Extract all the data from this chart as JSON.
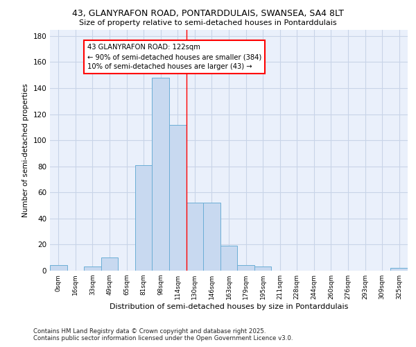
{
  "title_line1": "43, GLANYRAFON ROAD, PONTARDDULAIS, SWANSEA, SA4 8LT",
  "title_line2": "Size of property relative to semi-detached houses in Pontarddulais",
  "xlabel": "Distribution of semi-detached houses by size in Pontarddulais",
  "ylabel": "Number of semi-detached properties",
  "categories": [
    "0sqm",
    "16sqm",
    "33sqm",
    "49sqm",
    "65sqm",
    "81sqm",
    "98sqm",
    "114sqm",
    "130sqm",
    "146sqm",
    "163sqm",
    "179sqm",
    "195sqm",
    "211sqm",
    "228sqm",
    "244sqm",
    "260sqm",
    "276sqm",
    "293sqm",
    "309sqm",
    "325sqm"
  ],
  "values": [
    4,
    0,
    3,
    10,
    0,
    81,
    148,
    112,
    52,
    52,
    19,
    4,
    3,
    0,
    0,
    0,
    0,
    0,
    0,
    0,
    2
  ],
  "bar_color": "#c8d9f0",
  "bar_edge_color": "#6baed6",
  "grid_color": "#c8d4e8",
  "background_color": "#eaf0fb",
  "vline_x_index": 8,
  "vline_color": "red",
  "annotation_title": "43 GLANYRAFON ROAD: 122sqm",
  "annotation_line1": "← 90% of semi-detached houses are smaller (384)",
  "annotation_line2": "10% of semi-detached houses are larger (43) →",
  "annotation_box_color": "white",
  "annotation_edge_color": "red",
  "ylim": [
    0,
    185
  ],
  "yticks": [
    0,
    20,
    40,
    60,
    80,
    100,
    120,
    140,
    160,
    180
  ],
  "footer_line1": "Contains HM Land Registry data © Crown copyright and database right 2025.",
  "footer_line2": "Contains public sector information licensed under the Open Government Licence v3.0."
}
